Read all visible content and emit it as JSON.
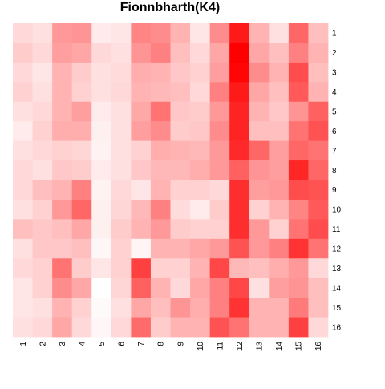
{
  "chart_data": {
    "type": "heatmap",
    "title": "Fionnbharth(K4)",
    "xlabel": "",
    "ylabel": "",
    "x_categories": [
      "1",
      "2",
      "3",
      "4",
      "5",
      "6",
      "7",
      "8",
      "9",
      "10",
      "11",
      "12",
      "13",
      "14",
      "15",
      "16"
    ],
    "y_categories": [
      "1",
      "2",
      "3",
      "4",
      "5",
      "6",
      "7",
      "8",
      "9",
      "10",
      "11",
      "12",
      "13",
      "14",
      "15",
      "16"
    ],
    "color_low": "#ffffff",
    "color_high": "#ff0000",
    "value_range": [
      0,
      1
    ],
    "legend": "none",
    "grid": false,
    "values": [
      [
        0.15,
        0.12,
        0.4,
        0.42,
        0.08,
        0.1,
        0.48,
        0.45,
        0.3,
        0.1,
        0.45,
        0.9,
        0.3,
        0.12,
        0.6,
        0.25
      ],
      [
        0.2,
        0.15,
        0.38,
        0.35,
        0.15,
        0.12,
        0.42,
        0.5,
        0.25,
        0.15,
        0.35,
        1.0,
        0.35,
        0.25,
        0.5,
        0.3
      ],
      [
        0.15,
        0.1,
        0.3,
        0.2,
        0.12,
        0.14,
        0.32,
        0.3,
        0.22,
        0.18,
        0.38,
        0.98,
        0.45,
        0.3,
        0.7,
        0.25
      ],
      [
        0.18,
        0.12,
        0.3,
        0.18,
        0.12,
        0.15,
        0.3,
        0.28,
        0.25,
        0.15,
        0.5,
        0.9,
        0.35,
        0.25,
        0.65,
        0.3
      ],
      [
        0.12,
        0.15,
        0.3,
        0.38,
        0.08,
        0.12,
        0.34,
        0.55,
        0.22,
        0.2,
        0.4,
        0.86,
        0.3,
        0.22,
        0.42,
        0.62
      ],
      [
        0.08,
        0.18,
        0.32,
        0.32,
        0.06,
        0.12,
        0.38,
        0.45,
        0.2,
        0.22,
        0.45,
        0.86,
        0.25,
        0.25,
        0.55,
        0.68
      ],
      [
        0.12,
        0.15,
        0.18,
        0.16,
        0.05,
        0.12,
        0.18,
        0.32,
        0.3,
        0.28,
        0.4,
        0.84,
        0.6,
        0.38,
        0.6,
        0.55
      ],
      [
        0.15,
        0.12,
        0.22,
        0.2,
        0.08,
        0.12,
        0.22,
        0.28,
        0.28,
        0.32,
        0.4,
        0.62,
        0.42,
        0.38,
        0.85,
        0.6
      ],
      [
        0.15,
        0.25,
        0.3,
        0.5,
        0.05,
        0.15,
        0.1,
        0.3,
        0.18,
        0.18,
        0.15,
        0.82,
        0.38,
        0.4,
        0.7,
        0.68
      ],
      [
        0.12,
        0.18,
        0.4,
        0.6,
        0.06,
        0.16,
        0.28,
        0.5,
        0.14,
        0.08,
        0.2,
        0.82,
        0.18,
        0.3,
        0.48,
        0.65
      ],
      [
        0.25,
        0.22,
        0.25,
        0.35,
        0.06,
        0.2,
        0.3,
        0.4,
        0.2,
        0.18,
        0.18,
        0.82,
        0.4,
        0.18,
        0.55,
        0.7
      ],
      [
        0.12,
        0.22,
        0.22,
        0.25,
        0.03,
        0.18,
        0.04,
        0.3,
        0.3,
        0.35,
        0.4,
        0.68,
        0.4,
        0.5,
        0.8,
        0.55
      ],
      [
        0.15,
        0.18,
        0.55,
        0.2,
        0.1,
        0.18,
        0.75,
        0.18,
        0.18,
        0.3,
        0.72,
        0.28,
        0.25,
        0.32,
        0.4,
        0.15
      ],
      [
        0.1,
        0.18,
        0.45,
        0.35,
        0.0,
        0.16,
        0.62,
        0.3,
        0.15,
        0.35,
        0.5,
        0.72,
        0.12,
        0.38,
        0.42,
        0.25
      ],
      [
        0.1,
        0.12,
        0.3,
        0.18,
        0.02,
        0.12,
        0.35,
        0.25,
        0.42,
        0.32,
        0.5,
        0.8,
        0.3,
        0.3,
        0.52,
        0.25
      ],
      [
        0.12,
        0.15,
        0.35,
        0.15,
        0.03,
        0.15,
        0.58,
        0.2,
        0.3,
        0.3,
        0.68,
        0.55,
        0.3,
        0.3,
        0.75,
        0.15
      ]
    ]
  }
}
